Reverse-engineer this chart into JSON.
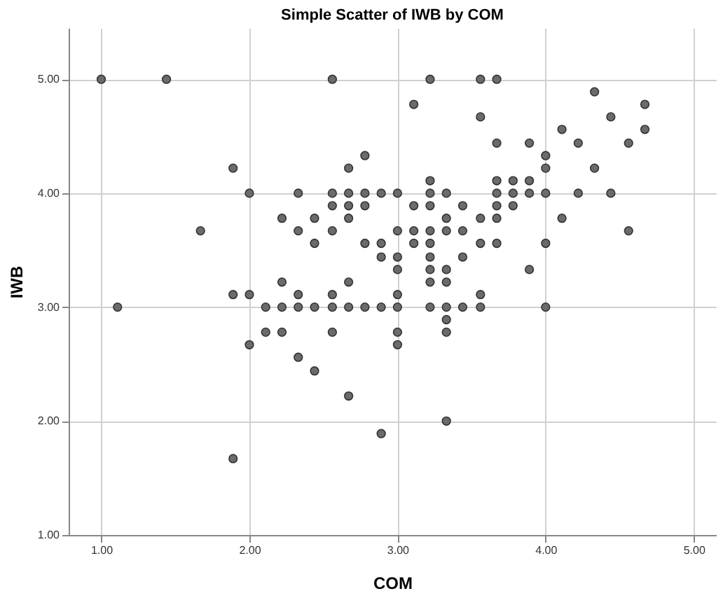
{
  "chart_data": {
    "type": "scatter",
    "title": "Simple Scatter of IWB by COM",
    "xlabel": "COM",
    "ylabel": "IWB",
    "x": [
      1.0,
      1.44,
      2.56,
      3.22,
      3.56,
      3.67,
      4.33,
      3.11,
      4.67,
      4.44,
      3.56,
      4.67,
      4.11,
      3.67,
      3.89,
      4.22,
      4.56,
      2.78,
      4.0,
      1.89,
      2.67,
      4.0,
      4.33,
      3.22,
      3.67,
      3.78,
      3.89,
      2.0,
      2.33,
      2.56,
      2.67,
      2.78,
      2.89,
      3.0,
      3.22,
      3.33,
      3.67,
      3.78,
      3.89,
      4.0,
      4.22,
      4.44,
      2.56,
      2.67,
      2.78,
      3.11,
      3.22,
      3.44,
      3.67,
      3.78,
      2.22,
      2.44,
      2.67,
      3.33,
      3.56,
      3.67,
      4.11,
      1.67,
      2.33,
      2.56,
      3.0,
      3.11,
      3.22,
      3.33,
      3.44,
      4.56,
      2.44,
      2.78,
      2.89,
      3.11,
      3.22,
      3.56,
      3.67,
      4.0,
      2.89,
      3.0,
      3.22,
      3.44,
      3.0,
      3.22,
      3.33,
      3.89,
      2.22,
      2.67,
      3.22,
      3.33,
      1.89,
      2.0,
      2.33,
      2.56,
      3.0,
      3.56,
      1.11,
      2.11,
      2.22,
      2.33,
      2.44,
      2.56,
      2.67,
      2.78,
      2.89,
      3.0,
      3.22,
      3.33,
      3.44,
      3.56,
      4.0,
      3.33,
      2.11,
      2.22,
      2.56,
      3.0,
      3.33,
      2.0,
      3.0,
      2.33,
      2.44,
      2.67,
      3.33,
      2.89,
      1.89
    ],
    "values": [
      5.0,
      5.0,
      5.0,
      5.0,
      5.0,
      5.0,
      4.89,
      4.78,
      4.78,
      4.67,
      4.67,
      4.56,
      4.56,
      4.44,
      4.44,
      4.44,
      4.44,
      4.33,
      4.33,
      4.22,
      4.22,
      4.22,
      4.22,
      4.11,
      4.11,
      4.11,
      4.11,
      4.0,
      4.0,
      4.0,
      4.0,
      4.0,
      4.0,
      4.0,
      4.0,
      4.0,
      4.0,
      4.0,
      4.0,
      4.0,
      4.0,
      4.0,
      3.89,
      3.89,
      3.89,
      3.89,
      3.89,
      3.89,
      3.89,
      3.89,
      3.78,
      3.78,
      3.78,
      3.78,
      3.78,
      3.78,
      3.78,
      3.67,
      3.67,
      3.67,
      3.67,
      3.67,
      3.67,
      3.67,
      3.67,
      3.67,
      3.56,
      3.56,
      3.56,
      3.56,
      3.56,
      3.56,
      3.56,
      3.56,
      3.44,
      3.44,
      3.44,
      3.44,
      3.33,
      3.33,
      3.33,
      3.33,
      3.22,
      3.22,
      3.22,
      3.22,
      3.11,
      3.11,
      3.11,
      3.11,
      3.11,
      3.11,
      3.0,
      3.0,
      3.0,
      3.0,
      3.0,
      3.0,
      3.0,
      3.0,
      3.0,
      3.0,
      3.0,
      3.0,
      3.0,
      3.0,
      3.0,
      2.89,
      2.78,
      2.78,
      2.78,
      2.78,
      2.78,
      2.67,
      2.67,
      2.56,
      2.44,
      2.22,
      2.0,
      1.89,
      1.67
    ],
    "color": "#6b6b6b",
    "marker": "circle",
    "grid": true,
    "xlim": [
      0.78,
      5.15
    ],
    "ylim": [
      1.0,
      5.45
    ],
    "xticks": [
      {
        "value": 1,
        "label": "1.00"
      },
      {
        "value": 2,
        "label": "2.00"
      },
      {
        "value": 3,
        "label": "3.00"
      },
      {
        "value": 4,
        "label": "4.00"
      },
      {
        "value": 5,
        "label": "5.00"
      }
    ],
    "yticks": [
      {
        "value": 1,
        "label": "1.00"
      },
      {
        "value": 2,
        "label": "2.00"
      },
      {
        "value": 3,
        "label": "3.00"
      },
      {
        "value": 4,
        "label": "4.00"
      },
      {
        "value": 5,
        "label": "5.00"
      }
    ]
  }
}
